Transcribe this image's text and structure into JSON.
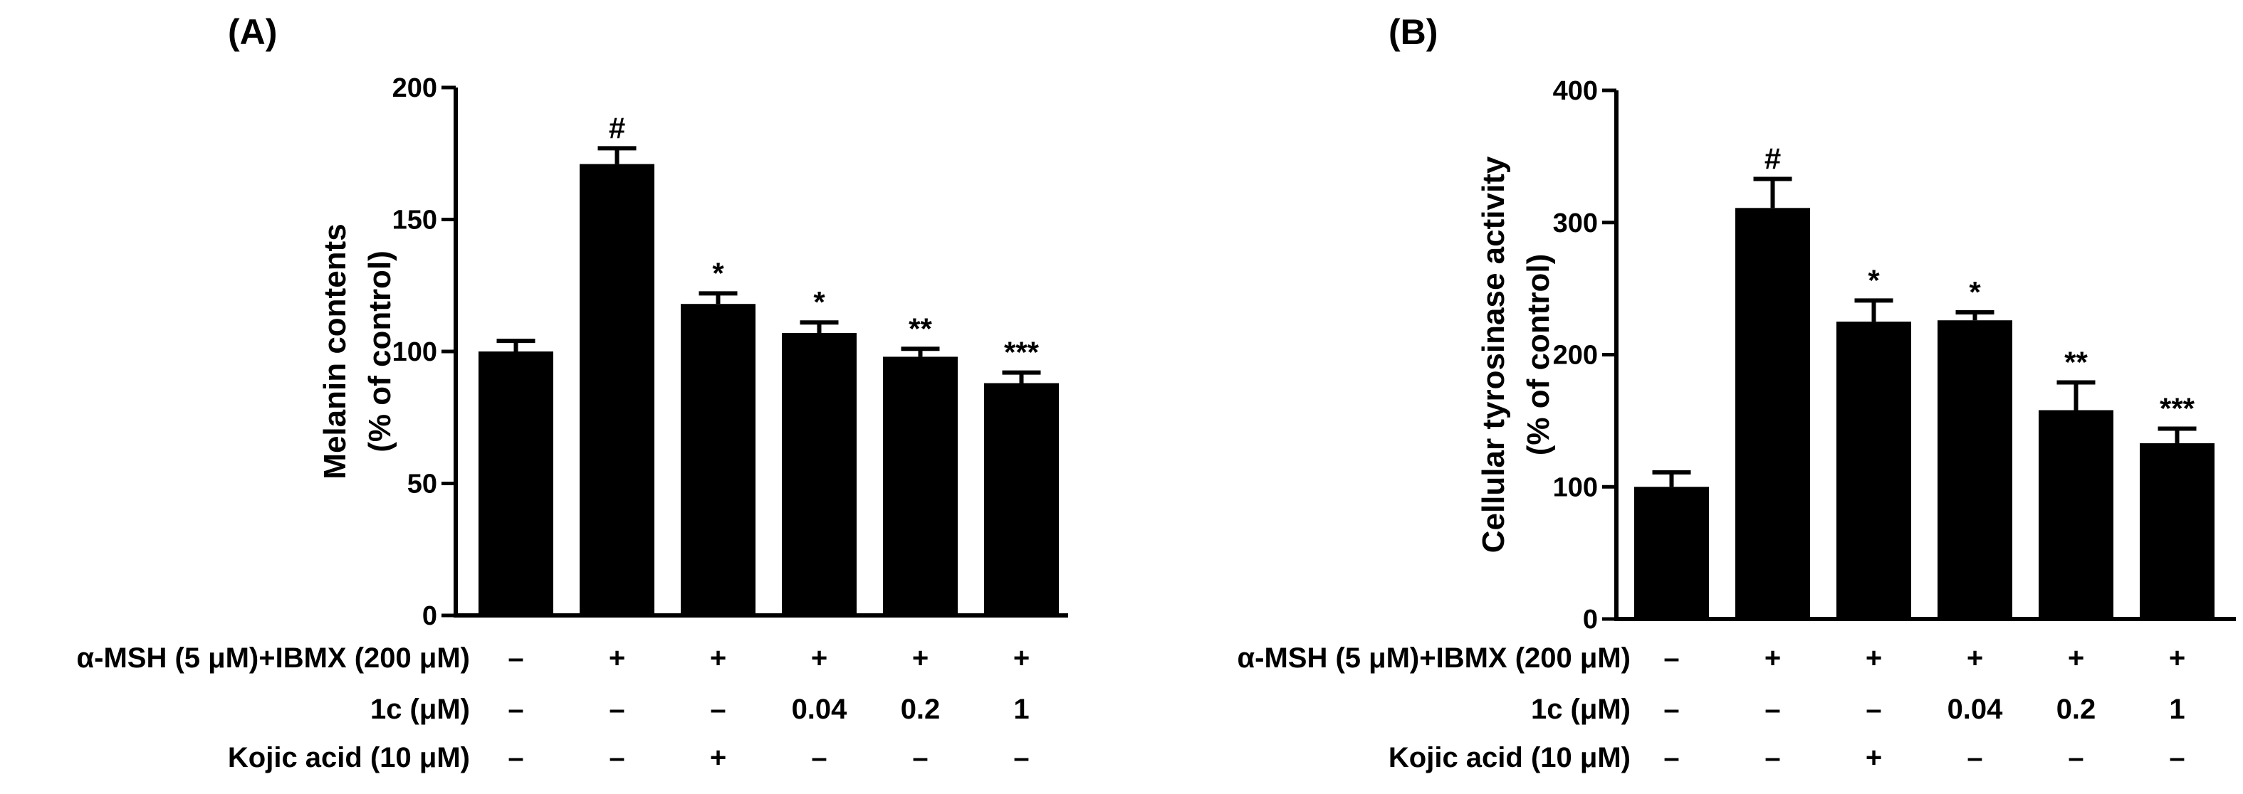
{
  "chart_data": [
    {
      "type": "bar",
      "panel_label": "(A)",
      "ylabel": "Melanin contents",
      "ylabel_units": "(% of control)",
      "ylim": [
        0,
        200
      ],
      "yticks": [
        "0",
        "50",
        "100",
        "150",
        "200"
      ],
      "values": [
        100,
        171,
        118,
        107,
        98,
        88
      ],
      "errors": [
        4,
        6,
        4,
        4,
        3,
        4
      ],
      "significance": [
        "",
        "#",
        "*",
        "*",
        "**",
        "***"
      ],
      "treatment_rows": [
        {
          "label": "α-MSH (5 μM)+IBMX (200 μM)",
          "cells": [
            "–",
            "+",
            "+",
            "+",
            "+",
            "+"
          ]
        },
        {
          "label": "1c (μM)",
          "cells": [
            "–",
            "–",
            "–",
            "0.04",
            "0.2",
            "1"
          ]
        },
        {
          "label": "Kojic acid (10 μM)",
          "cells": [
            "–",
            "–",
            "+",
            "–",
            "–",
            "–"
          ]
        }
      ]
    },
    {
      "type": "bar",
      "panel_label": "(B)",
      "ylabel": "Cellular tyrosinase activity",
      "ylabel_units": "(% of control)",
      "ylim": [
        0,
        400
      ],
      "yticks": [
        "0",
        "100",
        "200",
        "300",
        "400"
      ],
      "values": [
        100,
        311,
        225,
        226,
        158,
        133
      ],
      "errors": [
        11,
        22,
        16,
        6,
        21,
        11
      ],
      "significance": [
        "",
        "#",
        "*",
        "*",
        "**",
        "***"
      ],
      "treatment_rows": [
        {
          "label": "α-MSH (5 μM)+IBMX (200 μM)",
          "cells": [
            "–",
            "+",
            "+",
            "+",
            "+",
            "+"
          ]
        },
        {
          "label": "1c (μM)",
          "cells": [
            "–",
            "–",
            "–",
            "0.04",
            "0.2",
            "1"
          ]
        },
        {
          "label": "Kojic acid (10 μM)",
          "cells": [
            "–",
            "–",
            "+",
            "–",
            "–",
            "–"
          ]
        }
      ]
    }
  ]
}
